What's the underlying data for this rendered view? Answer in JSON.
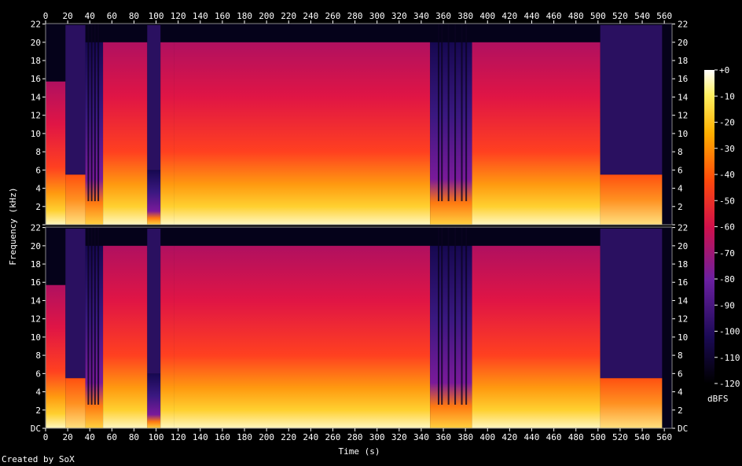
{
  "chart_data": {
    "type": "heatmap",
    "title": "",
    "xlabel": "Time (s)",
    "ylabel": "Frequency (kHz)",
    "x_ticks": [
      0,
      20,
      40,
      60,
      80,
      100,
      120,
      140,
      160,
      180,
      200,
      220,
      240,
      260,
      280,
      300,
      320,
      340,
      360,
      380,
      400,
      420,
      440,
      460,
      480,
      500,
      520,
      540,
      560
    ],
    "xlim": [
      0,
      567
    ],
    "y_ticks": [
      2,
      4,
      6,
      8,
      10,
      12,
      14,
      16,
      18,
      20,
      22
    ],
    "y_zero_label": "DC",
    "ylim": [
      0,
      22.05
    ],
    "channels": 2,
    "colorbar": {
      "label": "dBFS",
      "ticks": [
        "+0",
        "-10",
        "-20",
        "-30",
        "-40",
        "-50",
        "-60",
        "-70",
        "-80",
        "-90",
        "-100",
        "-110",
        "-120"
      ],
      "range": [
        -120,
        0
      ]
    },
    "segments": [
      {
        "start": 0,
        "end": 18,
        "top_khz": 15.7,
        "level_db": -50
      },
      {
        "start": 18,
        "end": 36,
        "top_khz": 5.5,
        "level_db": -40
      },
      {
        "start": 36,
        "end": 52,
        "top_khz": 20,
        "level_db": -70
      },
      {
        "start": 52,
        "end": 92,
        "top_khz": 20,
        "level_db": -55
      },
      {
        "start": 92,
        "end": 104,
        "top_khz": 6,
        "level_db": -75
      },
      {
        "start": 104,
        "end": 116,
        "top_khz": 20,
        "level_db": -58
      },
      {
        "start": 116,
        "end": 348,
        "top_khz": 20,
        "level_db": -55
      },
      {
        "start": 348,
        "end": 386,
        "top_khz": 20,
        "level_db": -70
      },
      {
        "start": 386,
        "end": 502,
        "top_khz": 20,
        "level_db": -56
      },
      {
        "start": 502,
        "end": 558,
        "top_khz": 5.5,
        "level_db": -45
      }
    ]
  },
  "footer": "Created by SoX"
}
